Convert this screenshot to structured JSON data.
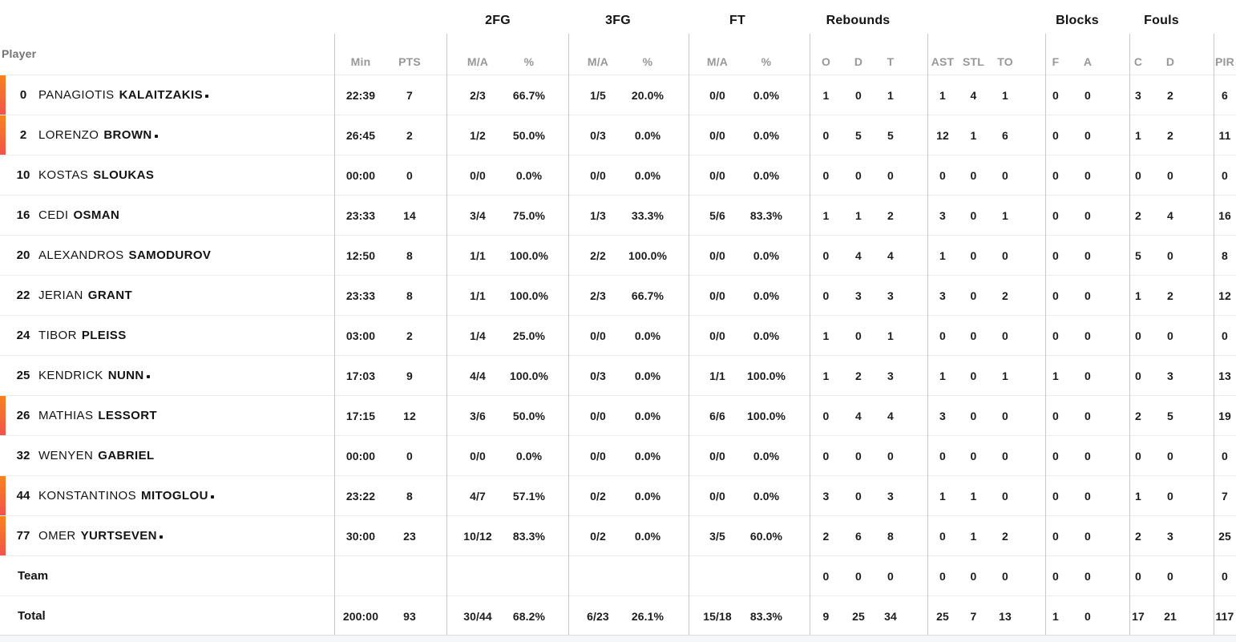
{
  "table": {
    "player_header": "Player",
    "groups": [
      {
        "label": "2FG"
      },
      {
        "label": "3FG"
      },
      {
        "label": "FT"
      },
      {
        "label": "Rebounds"
      },
      {
        "label": "Blocks"
      },
      {
        "label": "Fouls"
      }
    ],
    "sub_headers": [
      "Min",
      "PTS",
      "M/A",
      "%",
      "M/A",
      "%",
      "M/A",
      "%",
      "O",
      "D",
      "T",
      "AST",
      "STL",
      "TO",
      "F",
      "A",
      "C",
      "D",
      "PIR"
    ],
    "accent": {
      "bar_gradient_top": "#f8831f",
      "bar_gradient_bottom": "#f2524a"
    },
    "rows": [
      {
        "type": "player",
        "number": "0",
        "first": "PANAGIOTIS",
        "last": "KALAITZAKIS",
        "starter_marker": true,
        "on_court_bar": true,
        "cells": {
          "min": "22:39",
          "pts": "7",
          "fg2_ma": "2/3",
          "fg2_pct": "66.7%",
          "fg3_ma": "1/5",
          "fg3_pct": "20.0%",
          "ft_ma": "0/0",
          "ft_pct": "0.0%",
          "reb_o": "1",
          "reb_d": "0",
          "reb_t": "1",
          "ast": "1",
          "stl": "4",
          "to": "1",
          "blk_f": "0",
          "blk_a": "0",
          "foul_c": "3",
          "foul_d": "2",
          "pir": "6"
        }
      },
      {
        "type": "player",
        "number": "2",
        "first": "LORENZO",
        "last": "BROWN",
        "starter_marker": true,
        "on_court_bar": true,
        "cells": {
          "min": "26:45",
          "pts": "2",
          "fg2_ma": "1/2",
          "fg2_pct": "50.0%",
          "fg3_ma": "0/3",
          "fg3_pct": "0.0%",
          "ft_ma": "0/0",
          "ft_pct": "0.0%",
          "reb_o": "0",
          "reb_d": "5",
          "reb_t": "5",
          "ast": "12",
          "stl": "1",
          "to": "6",
          "blk_f": "0",
          "blk_a": "0",
          "foul_c": "1",
          "foul_d": "2",
          "pir": "11"
        }
      },
      {
        "type": "player",
        "number": "10",
        "first": "KOSTAS",
        "last": "SLOUKAS",
        "starter_marker": false,
        "on_court_bar": false,
        "cells": {
          "min": "00:00",
          "pts": "0",
          "fg2_ma": "0/0",
          "fg2_pct": "0.0%",
          "fg3_ma": "0/0",
          "fg3_pct": "0.0%",
          "ft_ma": "0/0",
          "ft_pct": "0.0%",
          "reb_o": "0",
          "reb_d": "0",
          "reb_t": "0",
          "ast": "0",
          "stl": "0",
          "to": "0",
          "blk_f": "0",
          "blk_a": "0",
          "foul_c": "0",
          "foul_d": "0",
          "pir": "0"
        }
      },
      {
        "type": "player",
        "number": "16",
        "first": "CEDI",
        "last": "OSMAN",
        "starter_marker": false,
        "on_court_bar": false,
        "cells": {
          "min": "23:33",
          "pts": "14",
          "fg2_ma": "3/4",
          "fg2_pct": "75.0%",
          "fg3_ma": "1/3",
          "fg3_pct": "33.3%",
          "ft_ma": "5/6",
          "ft_pct": "83.3%",
          "reb_o": "1",
          "reb_d": "1",
          "reb_t": "2",
          "ast": "3",
          "stl": "0",
          "to": "1",
          "blk_f": "0",
          "blk_a": "0",
          "foul_c": "2",
          "foul_d": "4",
          "pir": "16"
        }
      },
      {
        "type": "player",
        "number": "20",
        "first": "ALEXANDROS",
        "last": "SAMODUROV",
        "starter_marker": false,
        "on_court_bar": false,
        "cells": {
          "min": "12:50",
          "pts": "8",
          "fg2_ma": "1/1",
          "fg2_pct": "100.0%",
          "fg3_ma": "2/2",
          "fg3_pct": "100.0%",
          "ft_ma": "0/0",
          "ft_pct": "0.0%",
          "reb_o": "0",
          "reb_d": "4",
          "reb_t": "4",
          "ast": "1",
          "stl": "0",
          "to": "0",
          "blk_f": "0",
          "blk_a": "0",
          "foul_c": "5",
          "foul_d": "0",
          "pir": "8"
        }
      },
      {
        "type": "player",
        "number": "22",
        "first": "JERIAN",
        "last": "GRANT",
        "starter_marker": false,
        "on_court_bar": false,
        "cells": {
          "min": "23:33",
          "pts": "8",
          "fg2_ma": "1/1",
          "fg2_pct": "100.0%",
          "fg3_ma": "2/3",
          "fg3_pct": "66.7%",
          "ft_ma": "0/0",
          "ft_pct": "0.0%",
          "reb_o": "0",
          "reb_d": "3",
          "reb_t": "3",
          "ast": "3",
          "stl": "0",
          "to": "2",
          "blk_f": "0",
          "blk_a": "0",
          "foul_c": "1",
          "foul_d": "2",
          "pir": "12"
        }
      },
      {
        "type": "player",
        "number": "24",
        "first": "TIBOR",
        "last": "PLEISS",
        "starter_marker": false,
        "on_court_bar": false,
        "cells": {
          "min": "03:00",
          "pts": "2",
          "fg2_ma": "1/4",
          "fg2_pct": "25.0%",
          "fg3_ma": "0/0",
          "fg3_pct": "0.0%",
          "ft_ma": "0/0",
          "ft_pct": "0.0%",
          "reb_o": "1",
          "reb_d": "0",
          "reb_t": "1",
          "ast": "0",
          "stl": "0",
          "to": "0",
          "blk_f": "0",
          "blk_a": "0",
          "foul_c": "0",
          "foul_d": "0",
          "pir": "0"
        }
      },
      {
        "type": "player",
        "number": "25",
        "first": "KENDRICK",
        "last": "NUNN",
        "starter_marker": true,
        "on_court_bar": false,
        "cells": {
          "min": "17:03",
          "pts": "9",
          "fg2_ma": "4/4",
          "fg2_pct": "100.0%",
          "fg3_ma": "0/3",
          "fg3_pct": "0.0%",
          "ft_ma": "1/1",
          "ft_pct": "100.0%",
          "reb_o": "1",
          "reb_d": "2",
          "reb_t": "3",
          "ast": "1",
          "stl": "0",
          "to": "1",
          "blk_f": "1",
          "blk_a": "0",
          "foul_c": "0",
          "foul_d": "3",
          "pir": "13"
        }
      },
      {
        "type": "player",
        "number": "26",
        "first": "MATHIAS",
        "last": "LESSORT",
        "starter_marker": false,
        "on_court_bar": true,
        "cells": {
          "min": "17:15",
          "pts": "12",
          "fg2_ma": "3/6",
          "fg2_pct": "50.0%",
          "fg3_ma": "0/0",
          "fg3_pct": "0.0%",
          "ft_ma": "6/6",
          "ft_pct": "100.0%",
          "reb_o": "0",
          "reb_d": "4",
          "reb_t": "4",
          "ast": "3",
          "stl": "0",
          "to": "0",
          "blk_f": "0",
          "blk_a": "0",
          "foul_c": "2",
          "foul_d": "5",
          "pir": "19"
        }
      },
      {
        "type": "player",
        "number": "32",
        "first": "WENYEN",
        "last": "GABRIEL",
        "starter_marker": false,
        "on_court_bar": false,
        "cells": {
          "min": "00:00",
          "pts": "0",
          "fg2_ma": "0/0",
          "fg2_pct": "0.0%",
          "fg3_ma": "0/0",
          "fg3_pct": "0.0%",
          "ft_ma": "0/0",
          "ft_pct": "0.0%",
          "reb_o": "0",
          "reb_d": "0",
          "reb_t": "0",
          "ast": "0",
          "stl": "0",
          "to": "0",
          "blk_f": "0",
          "blk_a": "0",
          "foul_c": "0",
          "foul_d": "0",
          "pir": "0"
        }
      },
      {
        "type": "player",
        "number": "44",
        "first": "KONSTANTINOS",
        "last": "MITOGLOU",
        "starter_marker": true,
        "on_court_bar": true,
        "cells": {
          "min": "23:22",
          "pts": "8",
          "fg2_ma": "4/7",
          "fg2_pct": "57.1%",
          "fg3_ma": "0/2",
          "fg3_pct": "0.0%",
          "ft_ma": "0/0",
          "ft_pct": "0.0%",
          "reb_o": "3",
          "reb_d": "0",
          "reb_t": "3",
          "ast": "1",
          "stl": "1",
          "to": "0",
          "blk_f": "0",
          "blk_a": "0",
          "foul_c": "1",
          "foul_d": "0",
          "pir": "7"
        }
      },
      {
        "type": "player",
        "number": "77",
        "first": "OMER",
        "last": "YURTSEVEN",
        "starter_marker": true,
        "on_court_bar": true,
        "cells": {
          "min": "30:00",
          "pts": "23",
          "fg2_ma": "10/12",
          "fg2_pct": "83.3%",
          "fg3_ma": "0/2",
          "fg3_pct": "0.0%",
          "ft_ma": "3/5",
          "ft_pct": "60.0%",
          "reb_o": "2",
          "reb_d": "6",
          "reb_t": "8",
          "ast": "0",
          "stl": "1",
          "to": "2",
          "blk_f": "0",
          "blk_a": "0",
          "foul_c": "2",
          "foul_d": "3",
          "pir": "25"
        }
      },
      {
        "type": "team",
        "label": "Team",
        "cells": {
          "min": "",
          "pts": "",
          "fg2_ma": "",
          "fg2_pct": "",
          "fg3_ma": "",
          "fg3_pct": "",
          "ft_ma": "",
          "ft_pct": "",
          "reb_o": "0",
          "reb_d": "0",
          "reb_t": "0",
          "ast": "0",
          "stl": "0",
          "to": "0",
          "blk_f": "0",
          "blk_a": "0",
          "foul_c": "0",
          "foul_d": "0",
          "pir": "0"
        }
      },
      {
        "type": "total",
        "label": "Total",
        "cells": {
          "min": "200:00",
          "pts": "93",
          "fg2_ma": "30/44",
          "fg2_pct": "68.2%",
          "fg3_ma": "6/23",
          "fg3_pct": "26.1%",
          "ft_ma": "15/18",
          "ft_pct": "83.3%",
          "reb_o": "9",
          "reb_d": "25",
          "reb_t": "34",
          "ast": "25",
          "stl": "7",
          "to": "13",
          "blk_f": "1",
          "blk_a": "0",
          "foul_c": "17",
          "foul_d": "21",
          "pir": "117"
        }
      }
    ]
  }
}
